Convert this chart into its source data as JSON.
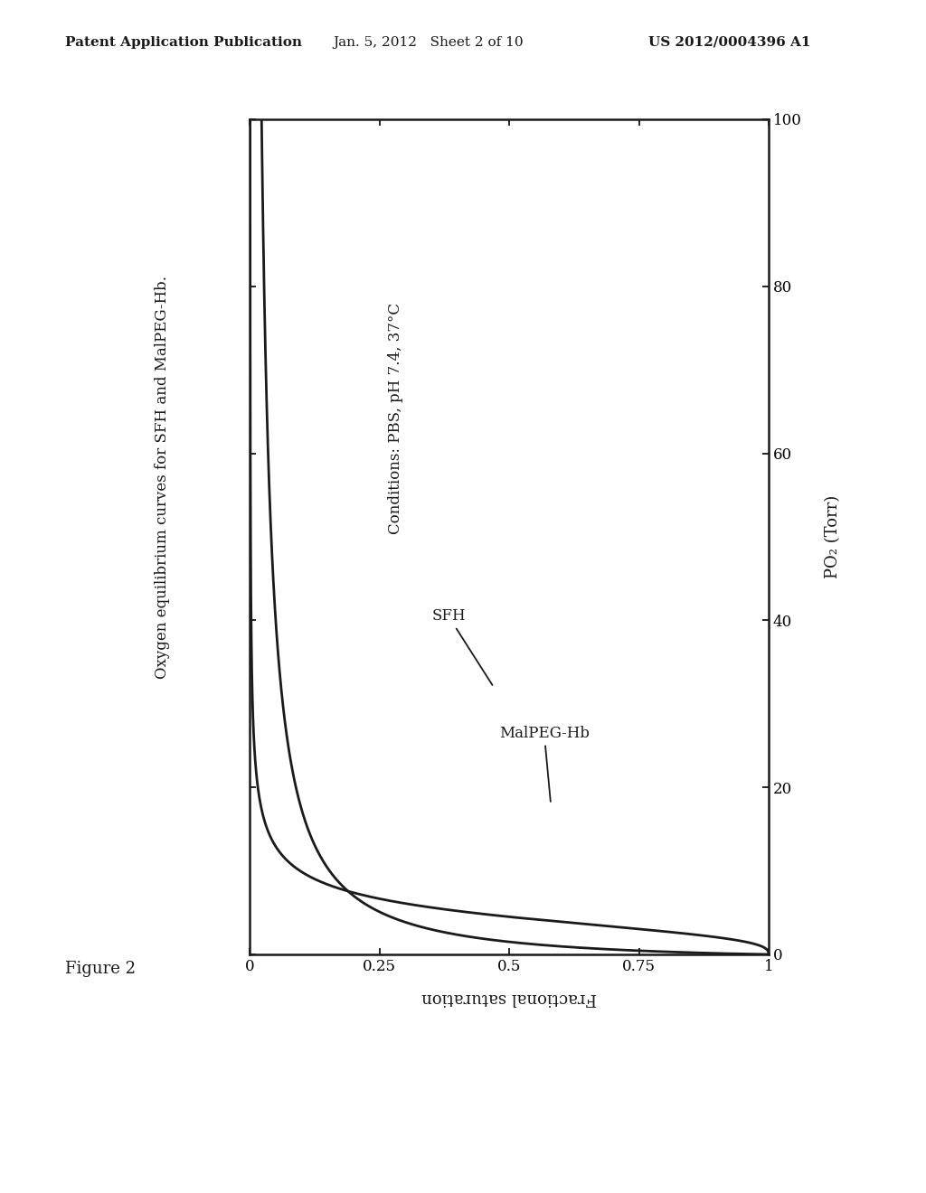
{
  "figure_label": "Figure 2",
  "title_text": "Oxygen equilibrium curves for SFH and MalPEG-Hb.",
  "header_left": "Patent Application Publication",
  "header_center": "Jan. 5, 2012   Sheet 2 of 10",
  "header_right": "US 2012/0004396 A1",
  "xlabel": "Fractional saturation",
  "ylabel": "PO₂ (Torr)",
  "conditions_text": "Conditions: PBS, pH 7.4, 37°C",
  "sfh_label": "SFH",
  "malpeg_label": "MalPEG-Hb",
  "xmin": 0,
  "xmax": 1,
  "ymin": 0,
  "ymax": 100,
  "xticks": [
    0,
    0.25,
    0.5,
    0.75,
    1.0
  ],
  "yticks": [
    0,
    20,
    40,
    60,
    80,
    100
  ],
  "sfh_p50": 4.5,
  "sfh_n": 2.8,
  "malpeg_p50": 1.5,
  "malpeg_n": 0.9,
  "line_color": "#1a1a1a",
  "bg_color": "#ffffff",
  "font_color": "#1a1a1a"
}
